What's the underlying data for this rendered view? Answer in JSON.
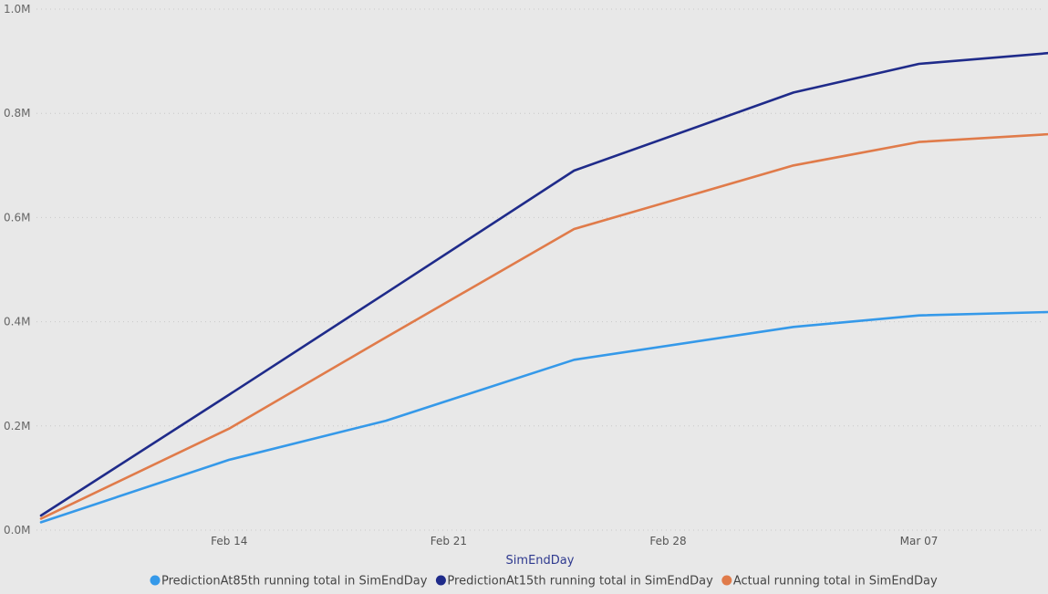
{
  "chart_data": {
    "type": "line",
    "xlabel": "SimEndDay",
    "ylabel": "",
    "ylim": [
      0,
      1000000
    ],
    "xlim": [
      "2020-02-08",
      "2020-03-11"
    ],
    "x_ticks": [
      {
        "date": "2020-02-14",
        "label": "Feb 14"
      },
      {
        "date": "2020-02-21",
        "label": "Feb 21"
      },
      {
        "date": "2020-02-28",
        "label": "Feb 28"
      },
      {
        "date": "2020-03-07",
        "label": "Mar 07"
      }
    ],
    "y_ticks": [
      {
        "value": 0,
        "label": "0.0M"
      },
      {
        "value": 200000,
        "label": "0.2M"
      },
      {
        "value": 400000,
        "label": "0.4M"
      },
      {
        "value": 600000,
        "label": "0.6M"
      },
      {
        "value": 800000,
        "label": "0.8M"
      },
      {
        "value": 1000000,
        "label": "1.0M"
      }
    ],
    "x": [
      "2020-02-08",
      "2020-02-14",
      "2020-02-19",
      "2020-02-25",
      "2020-03-03",
      "2020-03-07",
      "2020-03-12"
    ],
    "series": [
      {
        "name": "PredictionAt85th running total in SimEndDay",
        "color": "#3599e9",
        "values": [
          15000,
          135000,
          210000,
          327000,
          390000,
          412000,
          420000
        ]
      },
      {
        "name": "PredictionAt15th running total in SimEndDay",
        "color": "#1f2b8a",
        "values": [
          28000,
          260000,
          455000,
          690000,
          840000,
          895000,
          920000
        ]
      },
      {
        "name": "Actual running total in SimEndDay",
        "color": "#e07b4a",
        "values": [
          22000,
          195000,
          370000,
          578000,
          700000,
          745000,
          763000
        ]
      }
    ],
    "grid": true,
    "legend_position": "bottom"
  }
}
